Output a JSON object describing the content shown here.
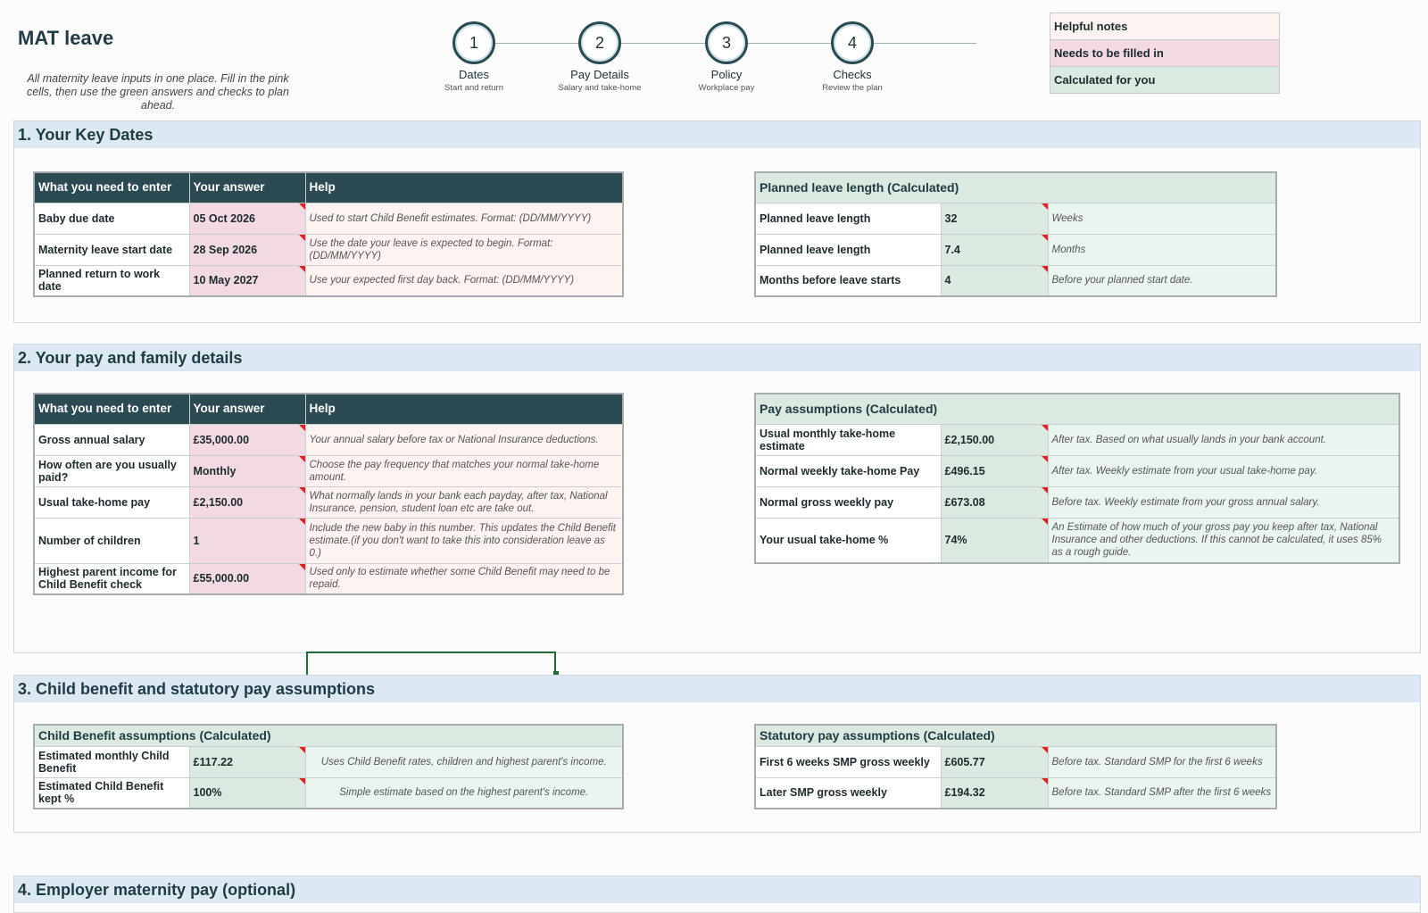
{
  "header": {
    "title": "MAT leave",
    "subtitle": "All maternity leave inputs in one place. Fill in the pink cells, then use the green answers and checks to plan ahead."
  },
  "steps": [
    {
      "num": "1",
      "label": "Dates",
      "desc": "Start and return"
    },
    {
      "num": "2",
      "label": "Pay Details",
      "desc": "Salary and take-home"
    },
    {
      "num": "3",
      "label": "Policy",
      "desc": "Workplace pay"
    },
    {
      "num": "4",
      "label": "Checks",
      "desc": "Review the plan"
    }
  ],
  "legend": {
    "notes": "Helpful notes",
    "fill": "Needs to be filled in",
    "calc": "Calculated for you"
  },
  "colors": {
    "input": "#f2d9e2",
    "calculated": "#dbe9e0",
    "header": "#2b4a52",
    "section": "#dce9f4"
  },
  "sec1": {
    "title": "1. Your Key Dates",
    "inputs": {
      "headers": [
        "What you need to enter",
        "Your answer",
        "Help"
      ],
      "rows": [
        {
          "label": "Baby due date",
          "value": "05 Oct 2026",
          "help": "Used to start Child Benefit estimates. Format: (DD/MM/YYYY)"
        },
        {
          "label": "Maternity leave start date",
          "value": "28 Sep 2026",
          "help": "Use the date your leave is expected to begin. Format: (DD/MM/YYYY)"
        },
        {
          "label": "Planned return to work date",
          "value": "10 May 2027",
          "help": "Use your expected first day back. Format: (DD/MM/YYYY)"
        }
      ]
    },
    "calc": {
      "title": "Planned leave length (Calculated)",
      "rows": [
        {
          "label": "Planned leave length",
          "value": "32",
          "help": "Weeks"
        },
        {
          "label": "Planned leave length",
          "value": "7.4",
          "help": "Months"
        },
        {
          "label": "Months before leave starts",
          "value": "4",
          "help": "Before your planned start date."
        }
      ]
    }
  },
  "sec2": {
    "title": "2. Your pay and family details",
    "inputs": {
      "headers": [
        "What you need to enter",
        "Your answer",
        "Help"
      ],
      "rows": [
        {
          "label": "Gross annual salary",
          "value": "£35,000.00",
          "help": "Your annual salary before tax or National Insurance deductions."
        },
        {
          "label": "How often are you usually paid?",
          "value": "Monthly",
          "help": "Choose the pay frequency that matches your normal take-home amount."
        },
        {
          "label": "Usual take-home pay",
          "value": "£2,150.00",
          "help": "What normally lands in your bank each payday, after tax, National Insurance, pension, student loan etc are take out."
        },
        {
          "label": "Number of children",
          "value": "1",
          "help": "Include the new baby in this number. This updates the Child Benefit estimate.(if you don't want to take this into consideration leave as 0.)"
        },
        {
          "label": "Highest parent income for Child Benefit check",
          "value": "£55,000.00",
          "help": "Used only to estimate whether some Child Benefit may need to be repaid."
        }
      ]
    },
    "calc": {
      "title": "Pay assumptions (Calculated)",
      "rows": [
        {
          "label": "Usual monthly take-home estimate",
          "value": "£2,150.00",
          "help": "After tax. Based on what usually lands in your bank account."
        },
        {
          "label": "Normal weekly take-home Pay",
          "value": "£496.15",
          "help": "After tax. Weekly estimate from your usual take-home pay."
        },
        {
          "label": "Normal gross weekly pay",
          "value": "£673.08",
          "help": "Before tax. Weekly estimate from your gross annual salary."
        },
        {
          "label": "Your usual take-home %",
          "value": "74%",
          "help": "An Estimate of how much of your gross pay you keep after tax, National Insurance and other deductions. If this cannot be calculated, it uses 85% as a rough guide."
        }
      ]
    }
  },
  "sec3": {
    "title": "3. Child benefit and statutory pay assumptions",
    "cb": {
      "title": "Child Benefit assumptions (Calculated)",
      "rows": [
        {
          "label": "Estimated monthly Child Benefit",
          "value": "£117.22",
          "help": "Uses Child Benefit rates, children and highest parent's income."
        },
        {
          "label": "Estimated Child Benefit kept %",
          "value": "100%",
          "help": "Simple estimate based on the highest parent's income."
        }
      ]
    },
    "smp": {
      "title": "Statutory pay assumptions (Calculated)",
      "rows": [
        {
          "label": "First 6 weeks SMP gross weekly",
          "value": "£605.77",
          "help": "Before tax. Standard SMP for the first 6 weeks"
        },
        {
          "label": "Later SMP gross weekly",
          "value": "£194.32",
          "help": "Before tax. Standard SMP after the first 6 weeks"
        }
      ]
    }
  },
  "sec4": {
    "title": "4. Employer maternity pay (optional)"
  }
}
